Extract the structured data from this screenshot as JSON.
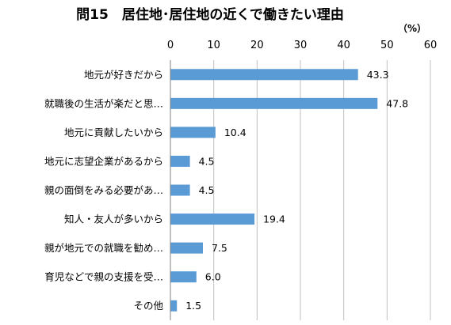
{
  "chart_data": {
    "type": "bar",
    "orientation": "horizontal",
    "title": "問15　居住地･居住地の近くで働きたい理由",
    "unit": "（%）",
    "xlim": [
      0,
      60
    ],
    "xticks": [
      "0",
      "10",
      "20",
      "30",
      "40",
      "50",
      "60"
    ],
    "grid": true,
    "bar_color": "#5B9BD5",
    "categories": [
      "地元が好きだから",
      "就職後の生活が楽だと思…",
      "地元に貢献したいから",
      "地元に志望企業があるから",
      "親の面倒をみる必要があ…",
      "知人・友人が多いから",
      "親が地元での就職を勧め…",
      "育児などで親の支援を受…",
      "その他"
    ],
    "values": [
      43.3,
      47.8,
      10.4,
      4.5,
      4.5,
      19.4,
      7.5,
      6.0,
      1.5
    ],
    "value_labels": [
      "43.3",
      "47.8",
      "10.4",
      "4.5",
      "4.5",
      "19.4",
      "7.5",
      "6.0",
      "1.5"
    ]
  }
}
